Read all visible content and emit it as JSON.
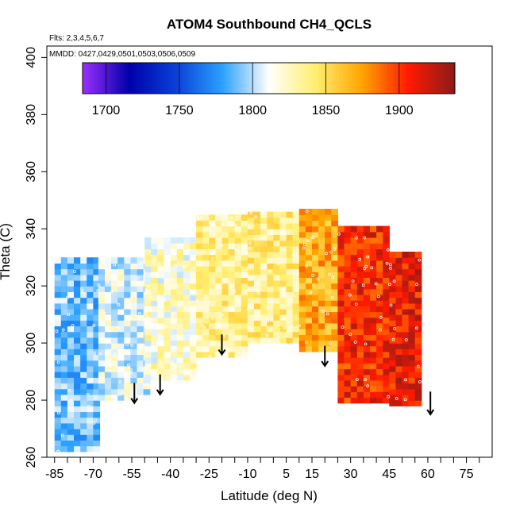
{
  "chart_data": {
    "type": "heatmap",
    "title": "ATOM4 Southbound CH4_QCLS",
    "flights_label": "Flts: 2,3,4,5,6,7",
    "dates_label": "MMDD: 0427,0429,0501,0503,0506,0509",
    "xlabel": "Latitude (deg N)",
    "ylabel": "Theta (C)",
    "xlim": [
      -88,
      85
    ],
    "ylim": [
      260,
      404
    ],
    "x_ticks": [
      -85,
      -70,
      -55,
      -40,
      -25,
      -10,
      5,
      15,
      30,
      45,
      60,
      75
    ],
    "x_minor_ticks": [
      -80,
      -75,
      -65,
      -60,
      -50,
      -45,
      -35,
      -30,
      -20,
      -15,
      -5,
      0,
      10,
      20,
      25,
      35,
      40,
      50,
      55,
      65,
      70,
      80
    ],
    "y_ticks": [
      260,
      280,
      300,
      320,
      340,
      360,
      380,
      400
    ],
    "colorbar": {
      "ticks": [
        1700,
        1750,
        1800,
        1850,
        1900
      ],
      "range": [
        1684,
        1938
      ],
      "colors": [
        "#9b30ff",
        "#0000aa",
        "#0a3fd8",
        "#2aa0ff",
        "#ffffff",
        "#ffef70",
        "#ffa500",
        "#ff1a00",
        "#8b1a1a"
      ]
    },
    "arrows_lat": [
      -54,
      -44,
      -20,
      20,
      61
    ],
    "arrow_labels": [
      "↓",
      "↓",
      "↓",
      "↓",
      "↓"
    ],
    "field_regions": [
      {
        "lat": [
          -85,
          -68
        ],
        "theta": [
          262,
          330
        ],
        "ch4": 1790
      },
      {
        "lat": [
          -68,
          -50
        ],
        "theta": [
          280,
          330
        ],
        "ch4": 1808
      },
      {
        "lat": [
          -50,
          -30
        ],
        "theta": [
          287,
          336
        ],
        "ch4": 1822
      },
      {
        "lat": [
          -30,
          -10
        ],
        "theta": [
          295,
          344
        ],
        "ch4": 1835
      },
      {
        "lat": [
          -10,
          10
        ],
        "theta": [
          300,
          346
        ],
        "ch4": 1838
      },
      {
        "lat": [
          10,
          25
        ],
        "theta": [
          297,
          347
        ],
        "ch4": 1870
      },
      {
        "lat": [
          25,
          45
        ],
        "theta": [
          279,
          340
        ],
        "ch4": 1905
      },
      {
        "lat": [
          45,
          57
        ],
        "theta": [
          278,
          331
        ],
        "ch4": 1912
      }
    ]
  }
}
